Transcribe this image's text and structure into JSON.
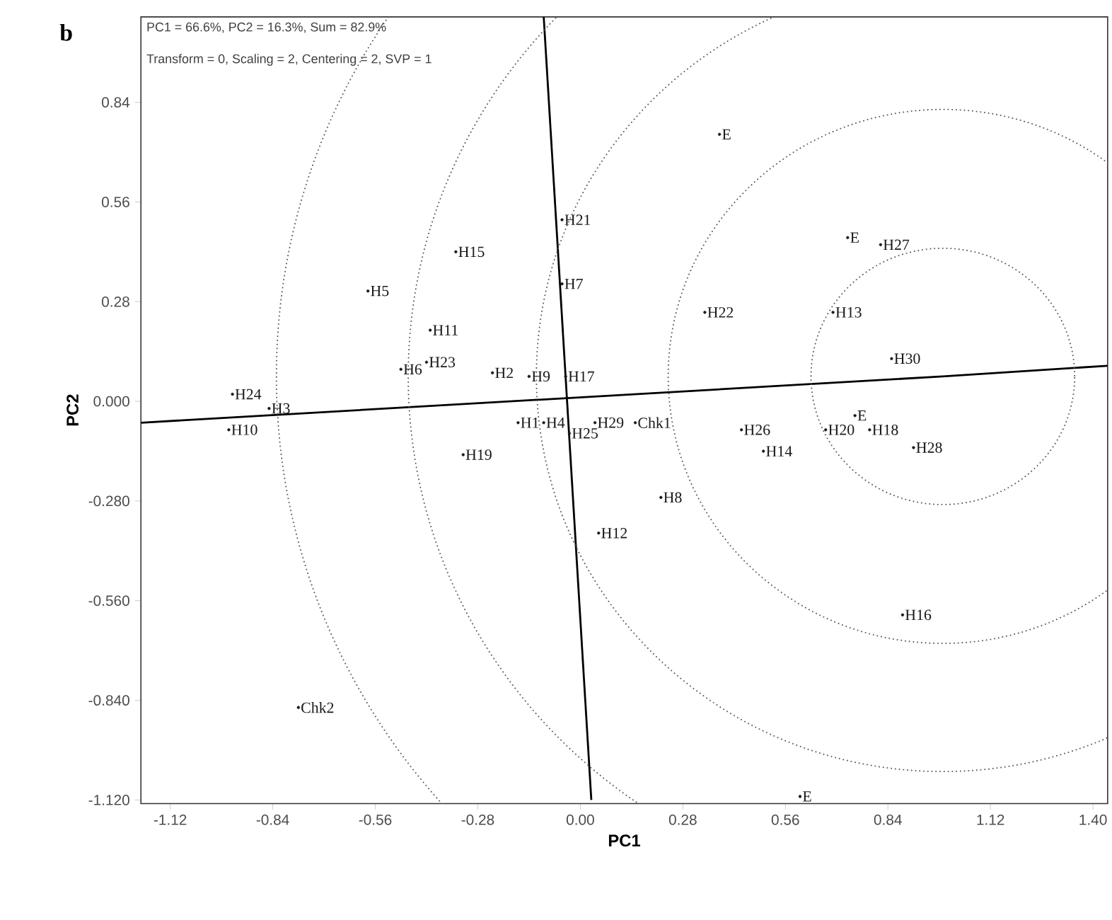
{
  "chart_data": {
    "type": "scatter",
    "title": "b",
    "xlabel": "PC1",
    "ylabel": "PC2",
    "annotations": [
      "PC1 = 66.6%, PC2 = 16.3%, Sum = 82.9%",
      "Transform = 0, Scaling = 2, Centering = 2, SVP = 1"
    ],
    "xlim": [
      -1.2,
      1.44
    ],
    "ylim": [
      -1.13,
      1.08
    ],
    "xticks": [
      -1.12,
      -0.84,
      -0.56,
      -0.28,
      {
        "value": 0,
        "label": "0.00"
      },
      0.28,
      0.56,
      0.84,
      1.12,
      {
        "value": 1.4,
        "label": "1.40"
      }
    ],
    "yticks": [
      {
        "value": -1.12,
        "label": "-1.120"
      },
      {
        "value": -0.84,
        "label": "-0.840"
      },
      {
        "value": -0.56,
        "label": "-0.560"
      },
      {
        "value": -0.28,
        "label": "-0.280"
      },
      {
        "value": 0,
        "label": "0.000"
      },
      0.28,
      0.56,
      0.84
    ],
    "grid": false,
    "series": [
      {
        "type": "scatter",
        "marker": "circle",
        "color": "#1a1a1a",
        "x": [
          -0.05,
          -0.34,
          -0.58,
          -0.05,
          -0.41,
          -0.42,
          -0.49,
          -0.24,
          -0.14,
          -0.04,
          -0.95,
          -0.85,
          -0.96,
          -0.17,
          -0.1,
          -0.03,
          0.04,
          0.15,
          -0.32,
          0.05,
          0.22,
          -0.77,
          0.34,
          0.69,
          0.82,
          0.85,
          0.44,
          0.5,
          0.67,
          0.79,
          0.91,
          0.88
        ],
        "values": [
          0.51,
          0.42,
          0.31,
          0.33,
          0.2,
          0.11,
          0.09,
          0.08,
          0.07,
          0.07,
          0.02,
          -0.02,
          -0.08,
          -0.06,
          -0.06,
          -0.09,
          -0.06,
          -0.06,
          -0.15,
          -0.37,
          -0.27,
          -0.86,
          0.25,
          0.25,
          0.44,
          0.12,
          -0.08,
          -0.14,
          -0.08,
          -0.08,
          -0.13,
          -0.6
        ],
        "value_labels": [
          "H21",
          "H15",
          "H5",
          "H7",
          "H11",
          "H23",
          "H6",
          "H2",
          "H9",
          "H17",
          "H24",
          "H3",
          "H10",
          "H1",
          "H4",
          "H25",
          "H29",
          "Chk1",
          "H19",
          "H12",
          "H8",
          "Chk2",
          "H22",
          "H13",
          "H27",
          "H30",
          "H26",
          "H14",
          "H20",
          "H18",
          "H28",
          "H16"
        ]
      },
      {
        "type": "scatter",
        "marker": "circle",
        "color": "#1a1a1a",
        "x": [
          0.38,
          0.73,
          0.75,
          0.6
        ],
        "values": [
          0.75,
          0.46,
          -0.04,
          -1.11
        ],
        "value_labels": [
          "E",
          "E",
          "E",
          "E"
        ]
      },
      {
        "type": "line",
        "line_style": "solid",
        "color": "#000000",
        "x": [
          -1.2,
          0.99,
          1.44
        ],
        "values": [
          -0.06,
          0.07,
          0.1
        ]
      },
      {
        "type": "line",
        "line_style": "solid",
        "color": "#000000",
        "x": [
          -0.1,
          0.03
        ],
        "values": [
          1.08,
          -1.12
        ]
      }
    ]
  }
}
